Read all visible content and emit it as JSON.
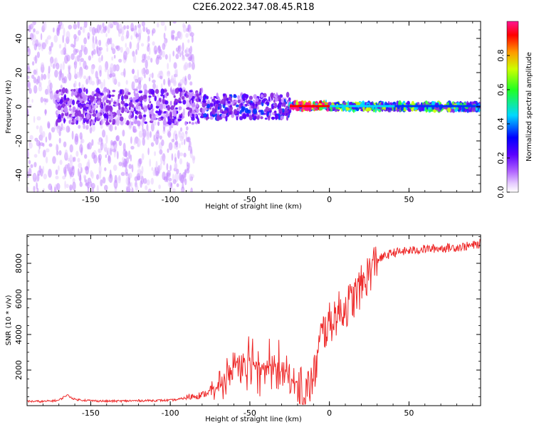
{
  "title": "C2E6.2022.347.08.45.R18",
  "colors": {
    "snr_line": "#ee2a2a",
    "spectrogram_palette": [
      "#ffffff",
      "#e6ccff",
      "#c58cff",
      "#8a2be2",
      "#5a00ff",
      "#0033ff",
      "#00d8ff",
      "#33ff33",
      "#ccff00",
      "#ff9900",
      "#ff0000",
      "#ff1493"
    ]
  },
  "chart_data": [
    {
      "type": "heatmap",
      "title": "",
      "xlabel": "Height of straight line (km)",
      "ylabel": "Frequency (Hz)",
      "xlim": [
        -190,
        95
      ],
      "ylim": [
        -50,
        50
      ],
      "xticks": [
        -150,
        -100,
        -50,
        0,
        50
      ],
      "yticks": [
        -40,
        -20,
        0,
        20,
        40
      ],
      "colorbar": {
        "label": "Normalized spectral amplitude",
        "range": [
          0.0,
          1.0
        ],
        "ticks": [
          0.0,
          0.2,
          0.4,
          0.6,
          0.8
        ],
        "tick_labels": [
          "0.0",
          "0.2",
          "0.4",
          "0.6",
          "0.8"
        ]
      },
      "description": [
        {
          "x_range": [
            -190,
            -85
          ],
          "frequency_center": 0,
          "frequency_spread": 50,
          "amplitude": 0.15
        },
        {
          "x_range": [
            -172,
            -80
          ],
          "frequency_center": 0,
          "frequency_spread": 10,
          "amplitude": 0.25
        },
        {
          "x_range": [
            -80,
            -25
          ],
          "frequency_center": 0,
          "frequency_spread": 7,
          "amplitude": 0.3
        },
        {
          "x_range": [
            -25,
            0
          ],
          "frequency_center": 0.5,
          "frequency_spread": 2,
          "amplitude": 0.85
        },
        {
          "x_range": [
            0,
            95
          ],
          "frequency_center": 0,
          "frequency_spread": 2,
          "amplitude": 0.5
        }
      ]
    },
    {
      "type": "line",
      "title": "",
      "xlabel": "Height of straight line (km)",
      "ylabel": "SNR (10 * v/v)",
      "xlim": [
        -190,
        95
      ],
      "ylim": [
        0,
        9600
      ],
      "xticks": [
        -150,
        -100,
        -50,
        0,
        50
      ],
      "yticks": [
        2000,
        4000,
        6000,
        8000
      ],
      "series": [
        {
          "color": "#ee2a2a",
          "x": [
            -190,
            -180,
            -170,
            -165,
            -160,
            -150,
            -140,
            -130,
            -120,
            -110,
            -100,
            -95,
            -90,
            -85,
            -80,
            -75,
            -70,
            -65,
            -60,
            -55,
            -50,
            -45,
            -40,
            -35,
            -30,
            -25,
            -20,
            -15,
            -10,
            -5,
            0,
            5,
            10,
            15,
            20,
            25,
            30,
            40,
            50,
            60,
            70,
            80,
            90,
            95
          ],
          "y": [
            250,
            230,
            300,
            600,
            350,
            280,
            250,
            260,
            280,
            290,
            300,
            350,
            450,
            550,
            600,
            800,
            1000,
            1500,
            2200,
            2800,
            2600,
            2400,
            2100,
            2200,
            2000,
            1500,
            1200,
            800,
            1500,
            4000,
            4600,
            5200,
            5500,
            6000,
            6700,
            7500,
            8200,
            8600,
            8700,
            8800,
            8850,
            8900,
            9000,
            9100
          ]
        }
      ]
    }
  ]
}
